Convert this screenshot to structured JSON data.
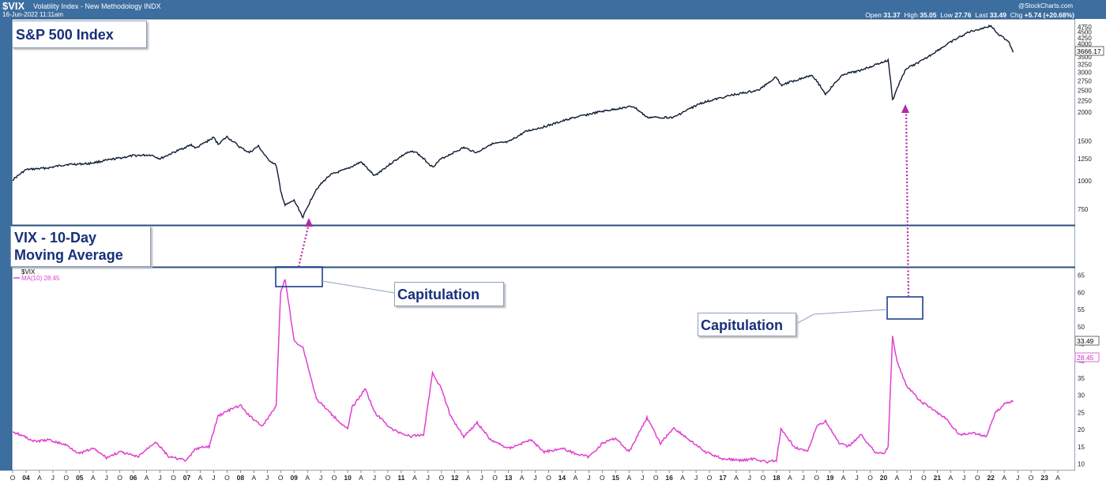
{
  "header": {
    "symbol": "$VIX",
    "name": "Volatility Index - New Methodology INDX",
    "date": "16-Jun-2022 11:11am",
    "credit": "@StockCharts.com",
    "open_label": "Open",
    "open": "31.37",
    "high_label": "High",
    "high": "35.05",
    "low_label": "Low",
    "low": "27.76",
    "last_label": "Last",
    "last": "33.49",
    "chg_label": "Chg",
    "chg": "+5.74 (+20.68%)"
  },
  "annotations": {
    "sp_title": "S&P 500 Index",
    "vix_title_line1": "VIX - 10-Day",
    "vix_title_line2": "Moving Average",
    "capitulation_1": "Capitulation",
    "capitulation_2": "Capitulation"
  },
  "legend": {
    "symbol": "$VIX",
    "ma": "MA(10) 28.45"
  },
  "colors": {
    "frame": "#3d6ea0",
    "sp_line": "#0d1b33",
    "vix_line": "#e040d0",
    "arrow": "#b02aa8",
    "box": "#1f3f8f",
    "text": "#17307a"
  },
  "chart_data": [
    {
      "type": "line",
      "yscale": "log",
      "y_ticks": [
        750,
        1000,
        1250,
        1500,
        2000,
        2250,
        2500,
        2750,
        3000,
        3250,
        3500,
        4000,
        4250,
        4500,
        4750
      ],
      "last_value_label": "3666.17",
      "series": [
        {
          "x": [
            "2003-10",
            "2004-01",
            "2004-06",
            "2004-10",
            "2005-03",
            "2005-08",
            "2006-01",
            "2006-05",
            "2006-07",
            "2007-02",
            "2007-03",
            "2007-07",
            "2007-08",
            "2007-10",
            "2008-01",
            "2008-03",
            "2008-05",
            "2008-07",
            "2008-09",
            "2008-10",
            "2008-11",
            "2009-01",
            "2009-03",
            "2009-06",
            "2009-09",
            "2010-01",
            "2010-04",
            "2010-07",
            "2011-02",
            "2011-04",
            "2011-08",
            "2011-10",
            "2012-03",
            "2012-06",
            "2012-09",
            "2013-01",
            "2013-05",
            "2013-10",
            "2014-03",
            "2014-09",
            "2015-03",
            "2015-05",
            "2015-08",
            "2016-02",
            "2016-08",
            "2017-03",
            "2017-09",
            "2018-01",
            "2018-02",
            "2018-09",
            "2018-12",
            "2019-04",
            "2019-07",
            "2020-02",
            "2020-03",
            "2020-06",
            "2020-10",
            "2021-03",
            "2021-08",
            "2022-01",
            "2022-03",
            "2022-05",
            "2022-06"
          ],
          "y": [
            1010,
            1120,
            1140,
            1180,
            1190,
            1240,
            1290,
            1300,
            1250,
            1440,
            1390,
            1550,
            1450,
            1560,
            1400,
            1330,
            1420,
            1250,
            1170,
            900,
            780,
            820,
            690,
            920,
            1060,
            1130,
            1210,
            1050,
            1320,
            1350,
            1150,
            1250,
            1400,
            1330,
            1450,
            1480,
            1650,
            1750,
            1880,
            2000,
            2100,
            2120,
            1900,
            1900,
            2190,
            2380,
            2500,
            2870,
            2630,
            2920,
            2400,
            2940,
            3020,
            3380,
            2260,
            3100,
            3400,
            3950,
            4500,
            4790,
            4350,
            4100,
            3666
          ]
        }
      ]
    },
    {
      "type": "line",
      "y_ticks": [
        10,
        15,
        20,
        25,
        30,
        35,
        40,
        45,
        50,
        55,
        60,
        65
      ],
      "last_value_label": "33.49",
      "ma_value_label": "28.45",
      "x_tick_labels": [
        "O",
        "04",
        "A",
        "J",
        "O",
        "05",
        "A",
        "J",
        "O",
        "06",
        "A",
        "J",
        "O",
        "07",
        "A",
        "J",
        "O",
        "08",
        "A",
        "J",
        "O",
        "09",
        "A",
        "J",
        "O",
        "10",
        "A",
        "J",
        "O",
        "11",
        "A",
        "J",
        "O",
        "12",
        "A",
        "J",
        "O",
        "13",
        "A",
        "J",
        "O",
        "14",
        "A",
        "J",
        "O",
        "15",
        "A",
        "J",
        "O",
        "16",
        "A",
        "J",
        "O",
        "17",
        "A",
        "J",
        "O",
        "18",
        "A",
        "J",
        "O",
        "19",
        "A",
        "J",
        "O",
        "20",
        "A",
        "J",
        "O",
        "21",
        "A",
        "J",
        "O",
        "22",
        "A",
        "J",
        "O",
        "23",
        "A"
      ],
      "series": [
        {
          "name": "MA(10) 28.45",
          "x": [
            "2003-10",
            "2004-03",
            "2004-06",
            "2004-10",
            "2005-01",
            "2005-04",
            "2005-07",
            "2005-10",
            "2006-02",
            "2006-06",
            "2006-09",
            "2007-01",
            "2007-03",
            "2007-06",
            "2007-08",
            "2007-11",
            "2008-01",
            "2008-03",
            "2008-06",
            "2008-09",
            "2008-10",
            "2008-11",
            "2009-01",
            "2009-03",
            "2009-06",
            "2009-09",
            "2010-01",
            "2010-02",
            "2010-05",
            "2010-07",
            "2010-11",
            "2011-03",
            "2011-06",
            "2011-08",
            "2011-10",
            "2011-12",
            "2012-03",
            "2012-06",
            "2012-09",
            "2013-01",
            "2013-06",
            "2013-09",
            "2014-01",
            "2014-04",
            "2014-07",
            "2014-10",
            "2015-01",
            "2015-04",
            "2015-08",
            "2015-11",
            "2016-02",
            "2016-06",
            "2016-09",
            "2017-01",
            "2017-05",
            "2017-08",
            "2017-11",
            "2018-01",
            "2018-02",
            "2018-05",
            "2018-08",
            "2018-10",
            "2018-12",
            "2019-03",
            "2019-05",
            "2019-08",
            "2019-11",
            "2020-01",
            "2020-02",
            "2020-03",
            "2020-04",
            "2020-06",
            "2020-09",
            "2021-01",
            "2021-03",
            "2021-06",
            "2021-09",
            "2021-12",
            "2022-02",
            "2022-03",
            "2022-04",
            "2022-05",
            "2022-06"
          ],
          "y": [
            19.5,
            16.5,
            17.0,
            15.5,
            13.0,
            14.5,
            11.8,
            13.5,
            12.0,
            16.5,
            12.0,
            11.0,
            14.5,
            15.0,
            24.0,
            26.0,
            27.0,
            24.0,
            21.0,
            27.0,
            60.0,
            64.0,
            46.0,
            44.0,
            29.0,
            25.0,
            20.0,
            26.5,
            32.0,
            25.0,
            20.0,
            18.0,
            18.5,
            36.5,
            32.0,
            24.0,
            18.0,
            22.0,
            17.0,
            14.5,
            17.0,
            13.5,
            14.5,
            13.0,
            12.0,
            16.0,
            17.5,
            13.5,
            23.5,
            16.0,
            20.5,
            16.5,
            13.5,
            11.5,
            11.0,
            11.5,
            10.5,
            11.0,
            20.0,
            15.0,
            13.5,
            21.0,
            22.5,
            16.0,
            15.0,
            18.5,
            13.5,
            13.0,
            15.0,
            47.0,
            40.0,
            33.0,
            28.5,
            25.0,
            23.0,
            18.5,
            19.0,
            18.0,
            25.0,
            26.0,
            27.5,
            28.0,
            28.45
          ]
        }
      ]
    }
  ]
}
